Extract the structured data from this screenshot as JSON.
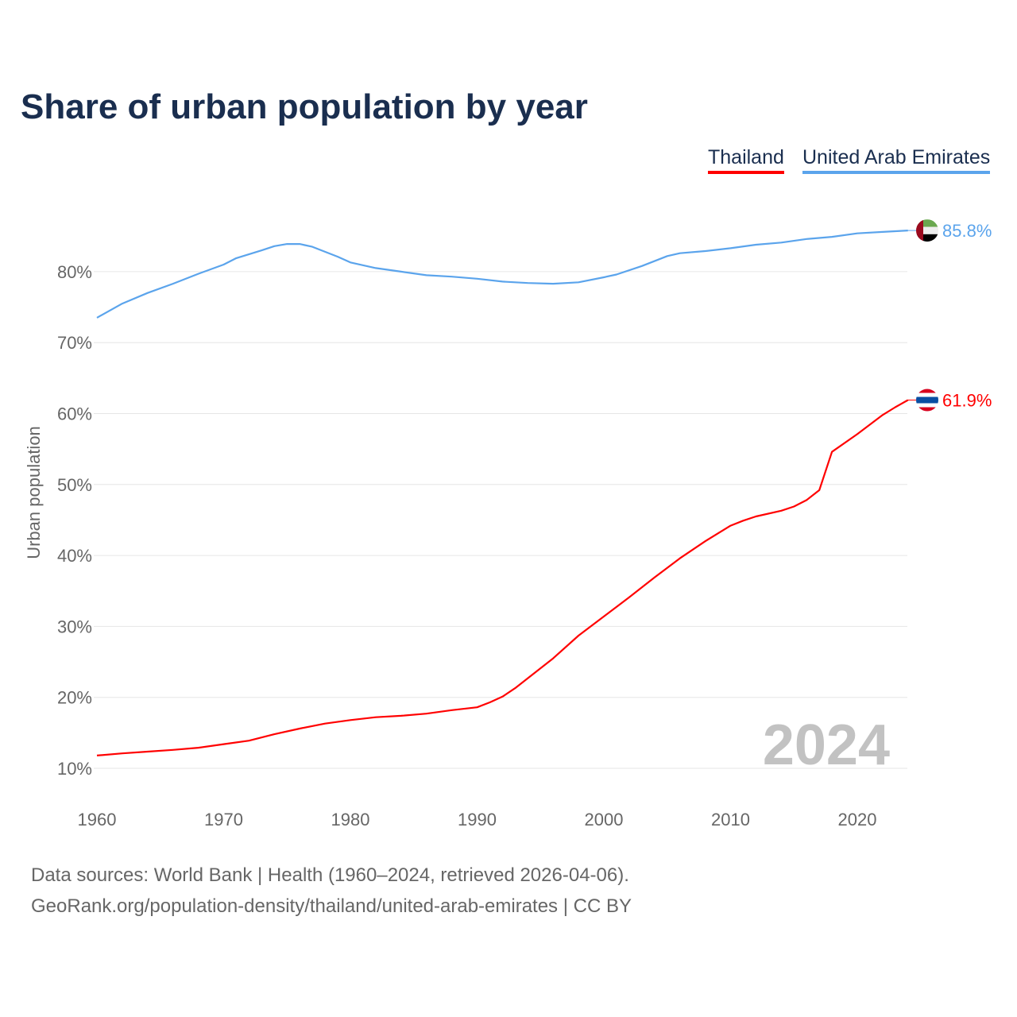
{
  "chart_data": {
    "type": "line",
    "title": "Share of urban population by year",
    "ylabel": "Urban population",
    "xlabel": "",
    "ylim": [
      10,
      87
    ],
    "xlim": [
      1960,
      2024
    ],
    "yticks": [
      "10%",
      "20%",
      "30%",
      "40%",
      "50%",
      "60%",
      "70%",
      "80%"
    ],
    "ytick_values": [
      10,
      20,
      30,
      40,
      50,
      60,
      70,
      80
    ],
    "xticks": [
      "1960",
      "1970",
      "1980",
      "1990",
      "2000",
      "2010",
      "2020"
    ],
    "xtick_values": [
      1960,
      1970,
      1980,
      1990,
      2000,
      2010,
      2020
    ],
    "grid": true,
    "legend_position": "top-right",
    "year_label": "2024",
    "series": [
      {
        "name": "Thailand",
        "color": "#ff0000",
        "end_label": "61.9%",
        "flag": "thailand-flag",
        "x": [
          1960,
          1962,
          1964,
          1966,
          1968,
          1970,
          1972,
          1974,
          1976,
          1978,
          1980,
          1982,
          1984,
          1986,
          1988,
          1990,
          1991,
          1992,
          1993,
          1994,
          1996,
          1998,
          2000,
          2002,
          2004,
          2006,
          2008,
          2010,
          2011,
          2012,
          2014,
          2015,
          2016,
          2017,
          2018,
          2020,
          2022,
          2023,
          2024
        ],
        "y": [
          11.8,
          12.1,
          12.35,
          12.6,
          12.9,
          13.4,
          13.9,
          14.8,
          15.6,
          16.3,
          16.8,
          17.2,
          17.4,
          17.7,
          18.2,
          18.6,
          19.3,
          20.1,
          21.3,
          22.7,
          25.5,
          28.7,
          31.4,
          34.1,
          36.9,
          39.6,
          42.0,
          44.2,
          44.9,
          45.5,
          46.3,
          46.9,
          47.8,
          49.2,
          54.6,
          57.1,
          59.8,
          60.9,
          61.9
        ]
      },
      {
        "name": "United Arab Emirates",
        "color": "#5ba4ec",
        "end_label": "85.8%",
        "flag": "uae-flag",
        "x": [
          1960,
          1962,
          1964,
          1966,
          1968,
          1970,
          1971,
          1973,
          1974,
          1975,
          1976,
          1977,
          1979,
          1980,
          1982,
          1984,
          1986,
          1988,
          1990,
          1992,
          1994,
          1996,
          1998,
          2000,
          2001,
          2003,
          2005,
          2006,
          2008,
          2010,
          2012,
          2014,
          2016,
          2018,
          2020,
          2022,
          2024
        ],
        "y": [
          73.5,
          75.5,
          77.0,
          78.3,
          79.7,
          81.0,
          81.9,
          83.0,
          83.6,
          83.9,
          83.9,
          83.5,
          82.1,
          81.3,
          80.5,
          80.0,
          79.5,
          79.3,
          79.0,
          78.6,
          78.4,
          78.3,
          78.5,
          79.2,
          79.6,
          80.8,
          82.2,
          82.6,
          82.9,
          83.3,
          83.8,
          84.1,
          84.6,
          84.9,
          85.4,
          85.6,
          85.8
        ]
      }
    ]
  },
  "footer": {
    "line1": "Data sources: World Bank | Health (1960–2024, retrieved 2026-04-06).",
    "line2": "GeoRank.org/population-density/thailand/united-arab-emirates | CC BY"
  }
}
